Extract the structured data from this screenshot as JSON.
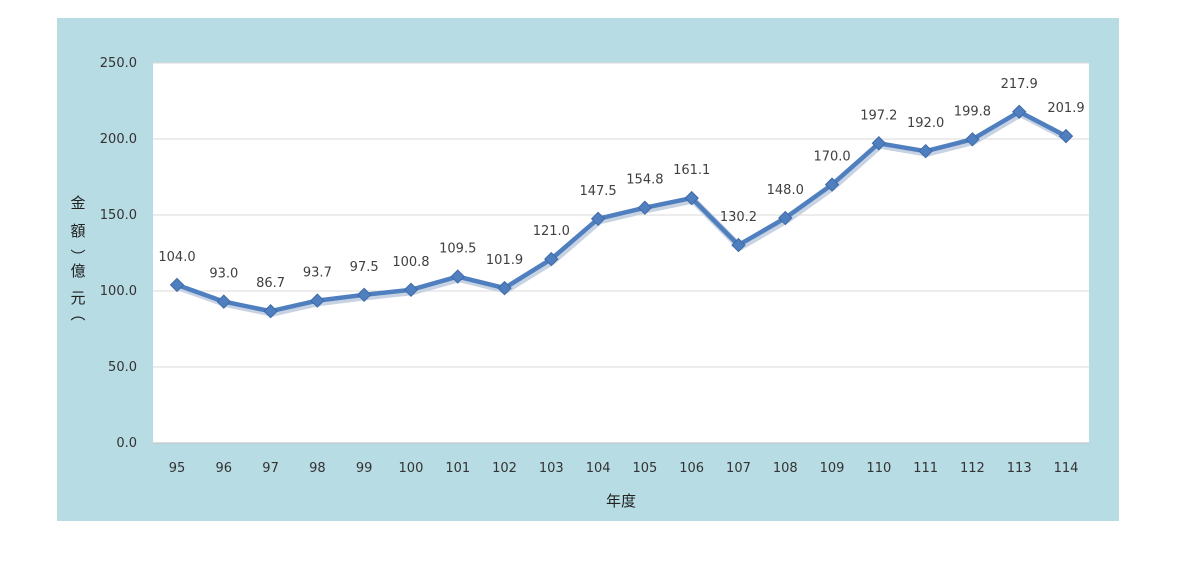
{
  "chart_data": {
    "type": "line",
    "title": "",
    "xlabel": "年度",
    "ylabel": "金額（億元）",
    "ylim": [
      0,
      250
    ],
    "yticks": [
      "0.0",
      "50.0",
      "100.0",
      "150.0",
      "200.0",
      "250.0"
    ],
    "categories": [
      "95",
      "96",
      "97",
      "98",
      "99",
      "100",
      "101",
      "102",
      "103",
      "104",
      "105",
      "106",
      "107",
      "108",
      "109",
      "110",
      "111",
      "112",
      "113",
      "114"
    ],
    "series": [
      {
        "values": [
          104.0,
          93.0,
          86.7,
          93.7,
          97.5,
          100.8,
          109.5,
          101.9,
          121.0,
          147.5,
          154.8,
          161.1,
          130.2,
          148.0,
          170.0,
          197.2,
          192.0,
          199.8,
          217.9,
          201.9
        ],
        "labels": [
          "104.0",
          "93.0",
          "86.7",
          "93.7",
          "97.5",
          "100.8",
          "109.5",
          "101.9",
          "121.0",
          "147.5",
          "154.8",
          "161.1",
          "130.2",
          "148.0",
          "170.0",
          "197.2",
          "192.0",
          "199.8",
          "217.9",
          "201.9"
        ],
        "color": "#4f7fbf"
      }
    ],
    "grid": true,
    "legend": "none",
    "background_color": "#b7dce4",
    "plot_color": "#ffffff",
    "ylabel_chars": [
      "金",
      "額",
      "︶",
      "億",
      "元",
      "︵"
    ]
  }
}
